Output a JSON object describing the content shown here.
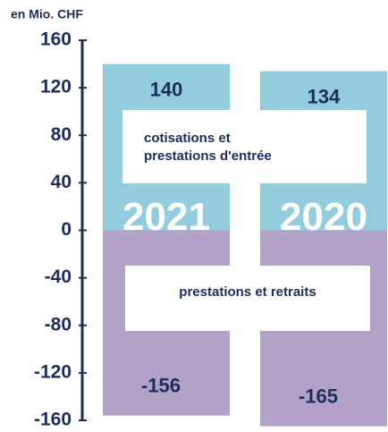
{
  "chart_data": {
    "type": "bar",
    "ylabel": "en Mio. CHF",
    "categories": [
      "2021",
      "2020"
    ],
    "series": [
      {
        "name": "cotisations et prestations d'entrée",
        "color": "#93cddd",
        "values": [
          140,
          134
        ]
      },
      {
        "name": "prestations et retraits",
        "color": "#b3a2c7",
        "values": [
          -156,
          -165
        ]
      }
    ],
    "ylim": [
      -160,
      160
    ],
    "yticks": [
      -160,
      -120,
      -80,
      -40,
      0,
      40,
      80,
      120,
      160
    ],
    "grid": false
  }
}
